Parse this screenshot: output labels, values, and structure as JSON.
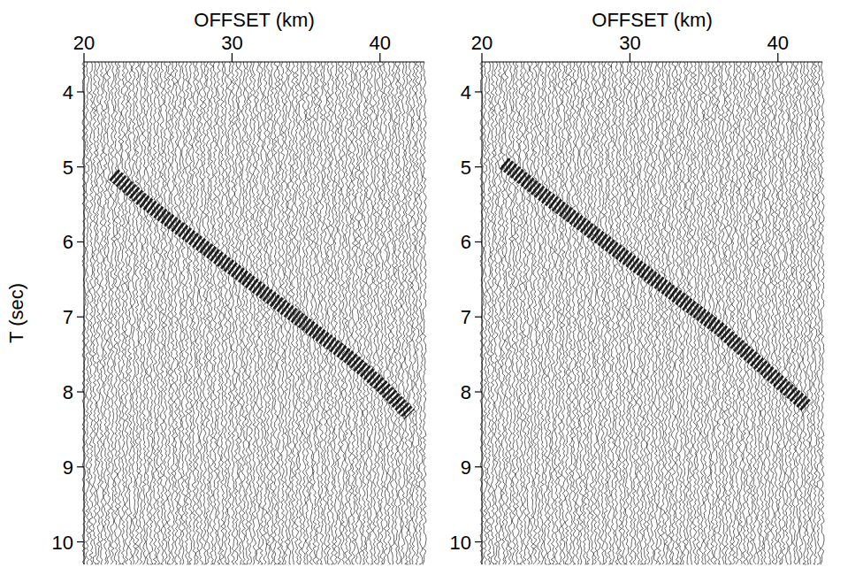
{
  "chart_data": [
    {
      "type": "wiggle",
      "x_label": "OFFSET (km)",
      "y_label": "T (sec)",
      "xlim": [
        20,
        43
      ],
      "xticks": [
        20,
        30,
        40
      ],
      "ylim": [
        3.6,
        10.3
      ],
      "yticks": [
        4,
        5,
        6,
        7,
        8,
        9,
        10
      ],
      "x": [
        22,
        24,
        26,
        28,
        30,
        32,
        34,
        36,
        38,
        40,
        42
      ],
      "values": [
        5.1,
        5.45,
        5.75,
        6.05,
        6.35,
        6.65,
        6.95,
        7.25,
        7.55,
        7.9,
        8.3
      ],
      "color": "#000000"
    },
    {
      "type": "wiggle",
      "x_label": "OFFSET (km)",
      "xlim": [
        20,
        43
      ],
      "xticks": [
        20,
        30,
        40
      ],
      "ylim": [
        3.6,
        10.3
      ],
      "yticks": [
        4,
        5,
        6,
        7,
        8,
        9,
        10
      ],
      "x": [
        21.5,
        24,
        26,
        28,
        30,
        32,
        34,
        36,
        38,
        40,
        42
      ],
      "values": [
        4.95,
        5.35,
        5.65,
        5.95,
        6.25,
        6.55,
        6.85,
        7.15,
        7.5,
        7.85,
        8.2
      ],
      "color": "#000000"
    }
  ]
}
